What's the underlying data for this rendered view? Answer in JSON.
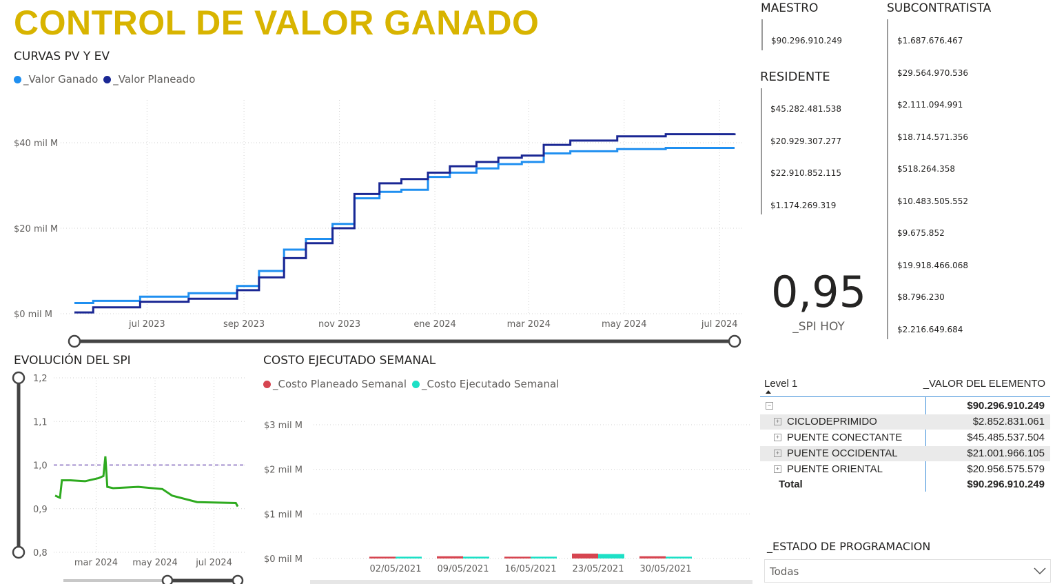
{
  "title": "CONTROL DE VALOR GANADO",
  "ev_chart": {
    "title": "CURVAS PV Y EV",
    "legend": [
      {
        "name": "_Valor Ganado",
        "color": "#1f8ff0"
      },
      {
        "name": "_Valor Planeado",
        "color": "#1a2794"
      }
    ]
  },
  "spi_chart": {
    "title": "EVOLUCIÓN DEL SPI"
  },
  "cost_chart": {
    "title": "COSTO EJECUTADO SEMANAL",
    "legend": [
      {
        "name": "_Costo Planeado Semanal",
        "color": "#d64550"
      },
      {
        "name": "_Costo Ejecutado Semanal",
        "color": "#1de0c6"
      }
    ]
  },
  "chart_data": [
    {
      "type": "line",
      "title": "CURVAS PV Y EV",
      "x_ticks": [
        "jul 2023",
        "sep 2023",
        "nov 2023",
        "ene 2024",
        "mar 2024",
        "may 2024",
        "jul 2024"
      ],
      "y_ticks": [
        "$0 mil M",
        "$20 mil M",
        "$40 mil M"
      ],
      "ylim": [
        0,
        50
      ],
      "y_unit": "mil M",
      "grid": true,
      "legend_position": "top-left",
      "x": [
        "2023-05-20",
        "2023-06-01",
        "2023-07-01",
        "2023-08-01",
        "2023-09-01",
        "2023-09-15",
        "2023-10-01",
        "2023-10-15",
        "2023-11-01",
        "2023-11-15",
        "2023-12-01",
        "2023-12-15",
        "2024-01-01",
        "2024-01-15",
        "2024-02-01",
        "2024-02-15",
        "2024-03-01",
        "2024-03-15",
        "2024-04-01",
        "2024-05-01",
        "2024-06-01",
        "2024-07-01",
        "2024-07-15"
      ],
      "series": [
        {
          "name": "_Valor Ganado",
          "color": "#1f8ff0",
          "values": [
            2.5,
            3.0,
            4.0,
            4.8,
            6.5,
            10.0,
            15.0,
            17.5,
            21.0,
            27.0,
            28.5,
            29.0,
            32.0,
            33.0,
            34.0,
            35.0,
            35.5,
            37.5,
            38.0,
            38.5,
            38.8,
            38.8,
            38.8
          ]
        },
        {
          "name": "_Valor Planeado",
          "color": "#1a2794",
          "values": [
            0.3,
            1.5,
            2.8,
            3.5,
            5.5,
            8.5,
            13.0,
            16.5,
            20.0,
            28.0,
            30.5,
            31.5,
            33.0,
            34.5,
            35.5,
            36.5,
            37.0,
            39.5,
            40.5,
            41.5,
            42.0,
            42.0,
            42.2
          ]
        }
      ]
    },
    {
      "type": "line",
      "title": "EVOLUCIÓN DEL SPI",
      "x_ticks": [
        "mar 2024",
        "may 2024",
        "jul 2024"
      ],
      "y_ticks": [
        "0,8",
        "0,9",
        "1,0",
        "1,1",
        "1,2"
      ],
      "ylim": [
        0.8,
        1.2
      ],
      "reference_line": 1.0,
      "x": [
        "2024-01-20",
        "2024-01-25",
        "2024-01-27",
        "2024-02-05",
        "2024-02-20",
        "2024-03-05",
        "2024-03-10",
        "2024-03-12",
        "2024-03-14",
        "2024-03-20",
        "2024-04-15",
        "2024-05-10",
        "2024-05-20",
        "2024-06-15",
        "2024-07-25",
        "2024-07-27"
      ],
      "series": [
        {
          "name": "SPI",
          "color": "#2eaa1f",
          "values": [
            0.93,
            0.925,
            0.965,
            0.965,
            0.963,
            0.97,
            0.975,
            1.02,
            0.95,
            0.947,
            0.95,
            0.945,
            0.93,
            0.915,
            0.913,
            0.905
          ]
        }
      ]
    },
    {
      "type": "bar",
      "title": "COSTO EJECUTADO SEMANAL",
      "categories": [
        "02/05/2021",
        "09/05/2021",
        "16/05/2021",
        "23/05/2021",
        "30/05/2021"
      ],
      "y_ticks": [
        "$0 mil M",
        "$1 mil M",
        "$2 mil M",
        "$3 mil M"
      ],
      "ylim": [
        0,
        3
      ],
      "series": [
        {
          "name": "_Costo Planeado Semanal",
          "color": "#d64550",
          "values": [
            0.04,
            0.05,
            0.04,
            0.11,
            0.05
          ]
        },
        {
          "name": "_Costo Ejecutado Semanal",
          "color": "#1de0c6",
          "values": [
            0.04,
            0.04,
            0.04,
            0.1,
            0.04
          ]
        }
      ]
    }
  ],
  "maestro": {
    "label": "MAESTRO",
    "values": [
      "$90.296.910.249"
    ]
  },
  "residente": {
    "label": "RESIDENTE",
    "values": [
      "$45.282.481.538",
      "$20.929.307.277",
      "$22.910.852.115",
      "$1.174.269.319"
    ]
  },
  "subcontratista": {
    "label": "SUBCONTRATISTA",
    "values": [
      "$1.687.676.467",
      "$29.564.970.536",
      "$2.111.094.991",
      "$18.714.571.356",
      "$518.264.358",
      "$10.483.505.552",
      "$9.675.852",
      "$19.918.466.068",
      "$8.796.230",
      "$2.216.649.684"
    ]
  },
  "spi_card": {
    "value": "0,95",
    "label": "_SPI HOY"
  },
  "matrix": {
    "col1": "Level 1",
    "col2": "_VALOR DEL ELEMENTO",
    "top_value": "$90.296.910.249",
    "rows": [
      {
        "label": "CICLODEPRIMIDO",
        "value": "$2.852.831.061"
      },
      {
        "label": "PUENTE CONECTANTE",
        "value": "$45.485.537.504"
      },
      {
        "label": "PUENTE OCCIDENTAL",
        "value": "$21.001.966.105"
      },
      {
        "label": "PUENTE ORIENTAL",
        "value": "$20.956.575.579"
      }
    ],
    "total_label": "Total",
    "total_value": "$90.296.910.249"
  },
  "slicer": {
    "label": "_ESTADO DE PROGRAMACION",
    "selected": "Todas"
  }
}
